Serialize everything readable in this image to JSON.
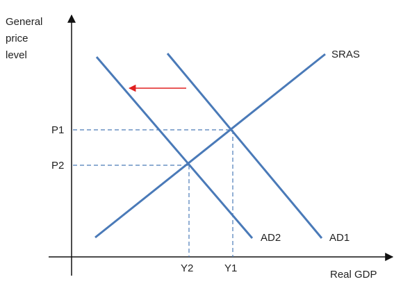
{
  "axes": {
    "y_label_lines": [
      "General",
      "price",
      "level"
    ],
    "x_label": "Real GDP"
  },
  "curves": {
    "sras": "SRAS",
    "ad1": "AD1",
    "ad2": "AD2"
  },
  "levels": {
    "p1": "P1",
    "p2": "P2",
    "y1": "Y1",
    "y2": "Y2"
  },
  "colors": {
    "curve": "#4a7ab8",
    "guide": "#4a7ab8",
    "shift_arrow": "#e02020",
    "axis": "#111111"
  }
}
